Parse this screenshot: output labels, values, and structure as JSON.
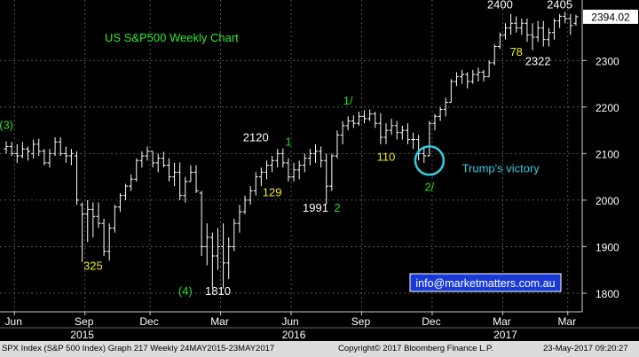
{
  "chart_data": {
    "type": "ohlc",
    "title": "US S&P500 Weekly Chart",
    "ylim": [
      1760,
      2430
    ],
    "yticks": [
      1800,
      1900,
      2000,
      2100,
      2200,
      2300
    ],
    "last_price": "2394.02",
    "x_months": [
      {
        "label": "Jun",
        "week": 2
      },
      {
        "label": "Sep",
        "week": 15
      },
      {
        "label": "Dec",
        "week": 27
      },
      {
        "label": "Mar",
        "week": 40
      },
      {
        "label": "Jun",
        "week": 53
      },
      {
        "label": "Sep",
        "week": 66
      },
      {
        "label": "Dec",
        "week": 79
      },
      {
        "label": "Mar",
        "week": 92
      },
      {
        "label": "Mar",
        "week": 104
      }
    ],
    "x_years": [
      {
        "label": "2015",
        "week": 14
      },
      {
        "label": "2016",
        "week": 53
      },
      {
        "label": "2017",
        "week": 92
      }
    ],
    "weeks": [
      {
        "h": 2126,
        "l": 2100,
        "o": 2110,
        "c": 2115
      },
      {
        "h": 2125,
        "l": 2095,
        "o": 2115,
        "c": 2100
      },
      {
        "h": 2120,
        "l": 2080,
        "o": 2100,
        "c": 2095
      },
      {
        "h": 2125,
        "l": 2090,
        "o": 2095,
        "c": 2110
      },
      {
        "h": 2115,
        "l": 2085,
        "o": 2110,
        "c": 2105
      },
      {
        "h": 2130,
        "l": 2090,
        "o": 2100,
        "c": 2120
      },
      {
        "h": 2132,
        "l": 2095,
        "o": 2120,
        "c": 2105
      },
      {
        "h": 2110,
        "l": 2075,
        "o": 2105,
        "c": 2080
      },
      {
        "h": 2110,
        "l": 2070,
        "o": 2080,
        "c": 2100
      },
      {
        "h": 2135,
        "l": 2095,
        "o": 2100,
        "c": 2125
      },
      {
        "h": 2135,
        "l": 2095,
        "o": 2125,
        "c": 2100
      },
      {
        "h": 2115,
        "l": 2080,
        "o": 2100,
        "c": 2095
      },
      {
        "h": 2110,
        "l": 2075,
        "o": 2095,
        "c": 2100
      },
      {
        "h": 2105,
        "l": 1990,
        "o": 2095,
        "c": 2000
      },
      {
        "h": 1995,
        "l": 1867,
        "o": 1990,
        "c": 1970
      },
      {
        "h": 2000,
        "l": 1910,
        "o": 1970,
        "c": 1980
      },
      {
        "h": 1995,
        "l": 1920,
        "o": 1980,
        "c": 1965
      },
      {
        "h": 1995,
        "l": 1940,
        "o": 1965,
        "c": 1950
      },
      {
        "h": 1960,
        "l": 1880,
        "o": 1950,
        "c": 1890
      },
      {
        "h": 1950,
        "l": 1870,
        "o": 1890,
        "c": 1940
      },
      {
        "h": 1990,
        "l": 1930,
        "o": 1940,
        "c": 1985
      },
      {
        "h": 2015,
        "l": 1975,
        "o": 1985,
        "c": 2010
      },
      {
        "h": 2035,
        "l": 2000,
        "o": 2010,
        "c": 2030
      },
      {
        "h": 2055,
        "l": 2020,
        "o": 2030,
        "c": 2045
      },
      {
        "h": 2090,
        "l": 2040,
        "o": 2045,
        "c": 2085
      },
      {
        "h": 2105,
        "l": 2070,
        "o": 2085,
        "c": 2095
      },
      {
        "h": 2115,
        "l": 2085,
        "o": 2095,
        "c": 2105
      },
      {
        "h": 2105,
        "l": 2070,
        "o": 2105,
        "c": 2080
      },
      {
        "h": 2100,
        "l": 2060,
        "o": 2080,
        "c": 2090
      },
      {
        "h": 2104,
        "l": 2070,
        "o": 2090,
        "c": 2075
      },
      {
        "h": 2090,
        "l": 2040,
        "o": 2075,
        "c": 2050
      },
      {
        "h": 2080,
        "l": 2030,
        "o": 2050,
        "c": 2060
      },
      {
        "h": 2081,
        "l": 2000,
        "o": 2060,
        "c": 2010
      },
      {
        "h": 2050,
        "l": 1995,
        "o": 2010,
        "c": 2040
      },
      {
        "h": 2075,
        "l": 2040,
        "o": 2040,
        "c": 2060
      },
      {
        "h": 2075,
        "l": 2015,
        "o": 2060,
        "c": 2020
      },
      {
        "h": 2020,
        "l": 1880,
        "o": 2015,
        "c": 1900
      },
      {
        "h": 1950,
        "l": 1860,
        "o": 1900,
        "c": 1920
      },
      {
        "h": 1930,
        "l": 1812,
        "o": 1920,
        "c": 1880
      },
      {
        "h": 1940,
        "l": 1850,
        "o": 1880,
        "c": 1900
      },
      {
        "h": 1950,
        "l": 1810,
        "o": 1900,
        "c": 1865
      },
      {
        "h": 1920,
        "l": 1830,
        "o": 1865,
        "c": 1900
      },
      {
        "h": 1960,
        "l": 1890,
        "o": 1900,
        "c": 1950
      },
      {
        "h": 1990,
        "l": 1930,
        "o": 1950,
        "c": 1975
      },
      {
        "h": 2010,
        "l": 1970,
        "o": 1975,
        "c": 2000
      },
      {
        "h": 2030,
        "l": 1990,
        "o": 2000,
        "c": 2020
      },
      {
        "h": 2060,
        "l": 2010,
        "o": 2020,
        "c": 2050
      },
      {
        "h": 2070,
        "l": 2030,
        "o": 2050,
        "c": 2060
      },
      {
        "h": 2085,
        "l": 2045,
        "o": 2060,
        "c": 2075
      },
      {
        "h": 2095,
        "l": 2060,
        "o": 2075,
        "c": 2085
      },
      {
        "h": 2110,
        "l": 2070,
        "o": 2085,
        "c": 2100
      },
      {
        "h": 2111,
        "l": 2070,
        "o": 2100,
        "c": 2080
      },
      {
        "h": 2090,
        "l": 2040,
        "o": 2080,
        "c": 2050
      },
      {
        "h": 2080,
        "l": 2040,
        "o": 2050,
        "c": 2065
      },
      {
        "h": 2085,
        "l": 2045,
        "o": 2065,
        "c": 2075
      },
      {
        "h": 2100,
        "l": 2060,
        "o": 2075,
        "c": 2090
      },
      {
        "h": 2110,
        "l": 2075,
        "o": 2090,
        "c": 2100
      },
      {
        "h": 2120,
        "l": 2080,
        "o": 2100,
        "c": 2105
      },
      {
        "h": 2115,
        "l": 2070,
        "o": 2105,
        "c": 2085
      },
      {
        "h": 2100,
        "l": 1991,
        "o": 2085,
        "c": 2030
      },
      {
        "h": 2100,
        "l": 2020,
        "o": 2030,
        "c": 2095
      },
      {
        "h": 2150,
        "l": 2090,
        "o": 2095,
        "c": 2140
      },
      {
        "h": 2170,
        "l": 2120,
        "o": 2140,
        "c": 2160
      },
      {
        "h": 2180,
        "l": 2150,
        "o": 2160,
        "c": 2170
      },
      {
        "h": 2182,
        "l": 2155,
        "o": 2170,
        "c": 2165
      },
      {
        "h": 2190,
        "l": 2160,
        "o": 2165,
        "c": 2180
      },
      {
        "h": 2193,
        "l": 2165,
        "o": 2180,
        "c": 2175
      },
      {
        "h": 2195,
        "l": 2170,
        "o": 2175,
        "c": 2185
      },
      {
        "h": 2190,
        "l": 2155,
        "o": 2185,
        "c": 2165
      },
      {
        "h": 2187,
        "l": 2120,
        "o": 2165,
        "c": 2135
      },
      {
        "h": 2165,
        "l": 2120,
        "o": 2135,
        "c": 2150
      },
      {
        "h": 2175,
        "l": 2140,
        "o": 2150,
        "c": 2160
      },
      {
        "h": 2170,
        "l": 2130,
        "o": 2160,
        "c": 2145
      },
      {
        "h": 2160,
        "l": 2130,
        "o": 2145,
        "c": 2150
      },
      {
        "h": 2165,
        "l": 2120,
        "o": 2150,
        "c": 2130
      },
      {
        "h": 2145,
        "l": 2110,
        "o": 2130,
        "c": 2130
      },
      {
        "h": 2140,
        "l": 2085,
        "o": 2130,
        "c": 2100
      },
      {
        "h": 2115,
        "l": 2080,
        "o": 2100,
        "c": 2095
      },
      {
        "h": 2170,
        "l": 2095,
        "o": 2095,
        "c": 2165
      },
      {
        "h": 2185,
        "l": 2150,
        "o": 2165,
        "c": 2180
      },
      {
        "h": 2200,
        "l": 2170,
        "o": 2180,
        "c": 2195
      },
      {
        "h": 2220,
        "l": 2180,
        "o": 2195,
        "c": 2210
      },
      {
        "h": 2260,
        "l": 2210,
        "o": 2210,
        "c": 2255
      },
      {
        "h": 2275,
        "l": 2245,
        "o": 2255,
        "c": 2265
      },
      {
        "h": 2280,
        "l": 2250,
        "o": 2265,
        "c": 2270
      },
      {
        "h": 2275,
        "l": 2240,
        "o": 2270,
        "c": 2255
      },
      {
        "h": 2280,
        "l": 2250,
        "o": 2255,
        "c": 2270
      },
      {
        "h": 2285,
        "l": 2255,
        "o": 2270,
        "c": 2275
      },
      {
        "h": 2280,
        "l": 2255,
        "o": 2275,
        "c": 2265
      },
      {
        "h": 2300,
        "l": 2265,
        "o": 2265,
        "c": 2295
      },
      {
        "h": 2335,
        "l": 2290,
        "o": 2295,
        "c": 2330
      },
      {
        "h": 2360,
        "l": 2325,
        "o": 2330,
        "c": 2355
      },
      {
        "h": 2380,
        "l": 2345,
        "o": 2355,
        "c": 2370
      },
      {
        "h": 2400,
        "l": 2355,
        "o": 2370,
        "c": 2380
      },
      {
        "h": 2395,
        "l": 2360,
        "o": 2380,
        "c": 2370
      },
      {
        "h": 2390,
        "l": 2355,
        "o": 2370,
        "c": 2380
      },
      {
        "h": 2390,
        "l": 2340,
        "o": 2380,
        "c": 2355
      },
      {
        "h": 2380,
        "l": 2322,
        "o": 2355,
        "c": 2350
      },
      {
        "h": 2385,
        "l": 2340,
        "o": 2350,
        "c": 2370
      },
      {
        "h": 2385,
        "l": 2330,
        "o": 2370,
        "c": 2345
      },
      {
        "h": 2370,
        "l": 2330,
        "o": 2345,
        "c": 2360
      },
      {
        "h": 2390,
        "l": 2345,
        "o": 2360,
        "c": 2385
      },
      {
        "h": 2400,
        "l": 2370,
        "o": 2385,
        "c": 2395
      },
      {
        "h": 2405,
        "l": 2380,
        "o": 2395,
        "c": 2390
      },
      {
        "h": 2400,
        "l": 2355,
        "o": 2390,
        "c": 2375
      },
      {
        "h": 2398,
        "l": 2375,
        "o": 2380,
        "c": 2394
      }
    ],
    "annotations": [
      {
        "text": "(3)",
        "week": 0,
        "y": 2153,
        "color": "#22dd22"
      },
      {
        "text": "325",
        "week": 16,
        "y": 1850,
        "color": "#eeee22"
      },
      {
        "text": "(4)",
        "week": 33,
        "y": 1796,
        "color": "#22dd22"
      },
      {
        "text": "1810",
        "week": 39,
        "y": 1796,
        "color": "#ffffff"
      },
      {
        "text": "2120",
        "week": 46,
        "y": 2126,
        "color": "#ffffff"
      },
      {
        "text": "1",
        "week": 52,
        "y": 2117,
        "color": "#22dd22"
      },
      {
        "text": "129",
        "week": 49,
        "y": 2008,
        "color": "#eeee22"
      },
      {
        "text": "1991",
        "week": 57,
        "y": 1975,
        "color": "#ffffff"
      },
      {
        "text": "2",
        "week": 61,
        "y": 1975,
        "color": "#22dd22"
      },
      {
        "text": "1/",
        "week": 63,
        "y": 2205,
        "color": "#22dd22"
      },
      {
        "text": "110",
        "week": 70,
        "y": 2085,
        "color": "#eeee22"
      },
      {
        "text": "2/",
        "week": 78,
        "y": 2020,
        "color": "#22dd22"
      },
      {
        "text": "Trump's victory",
        "week": 84,
        "y": 2060,
        "color": "#33ccdd",
        "anchor": "start"
      },
      {
        "text": "2400",
        "week": 91,
        "y": 2412,
        "color": "#ffffff"
      },
      {
        "text": "78",
        "week": 94,
        "y": 2310,
        "color": "#eeee22"
      },
      {
        "text": "2322",
        "week": 98,
        "y": 2290,
        "color": "#ffffff"
      },
      {
        "text": "2405",
        "week": 102,
        "y": 2412,
        "color": "#ffffff"
      }
    ],
    "circle": {
      "week": 78,
      "y": 2085
    },
    "watermark": "info@marketmatters.com.au"
  },
  "footer": {
    "left": "SPX Index (S&P 500 Index) Graph 217  Weekly 24MAY2015-23MAY2017",
    "center": "Copyright© 2017 Bloomberg Finance L.P.",
    "right": "23-May-2017 09:20:27"
  }
}
